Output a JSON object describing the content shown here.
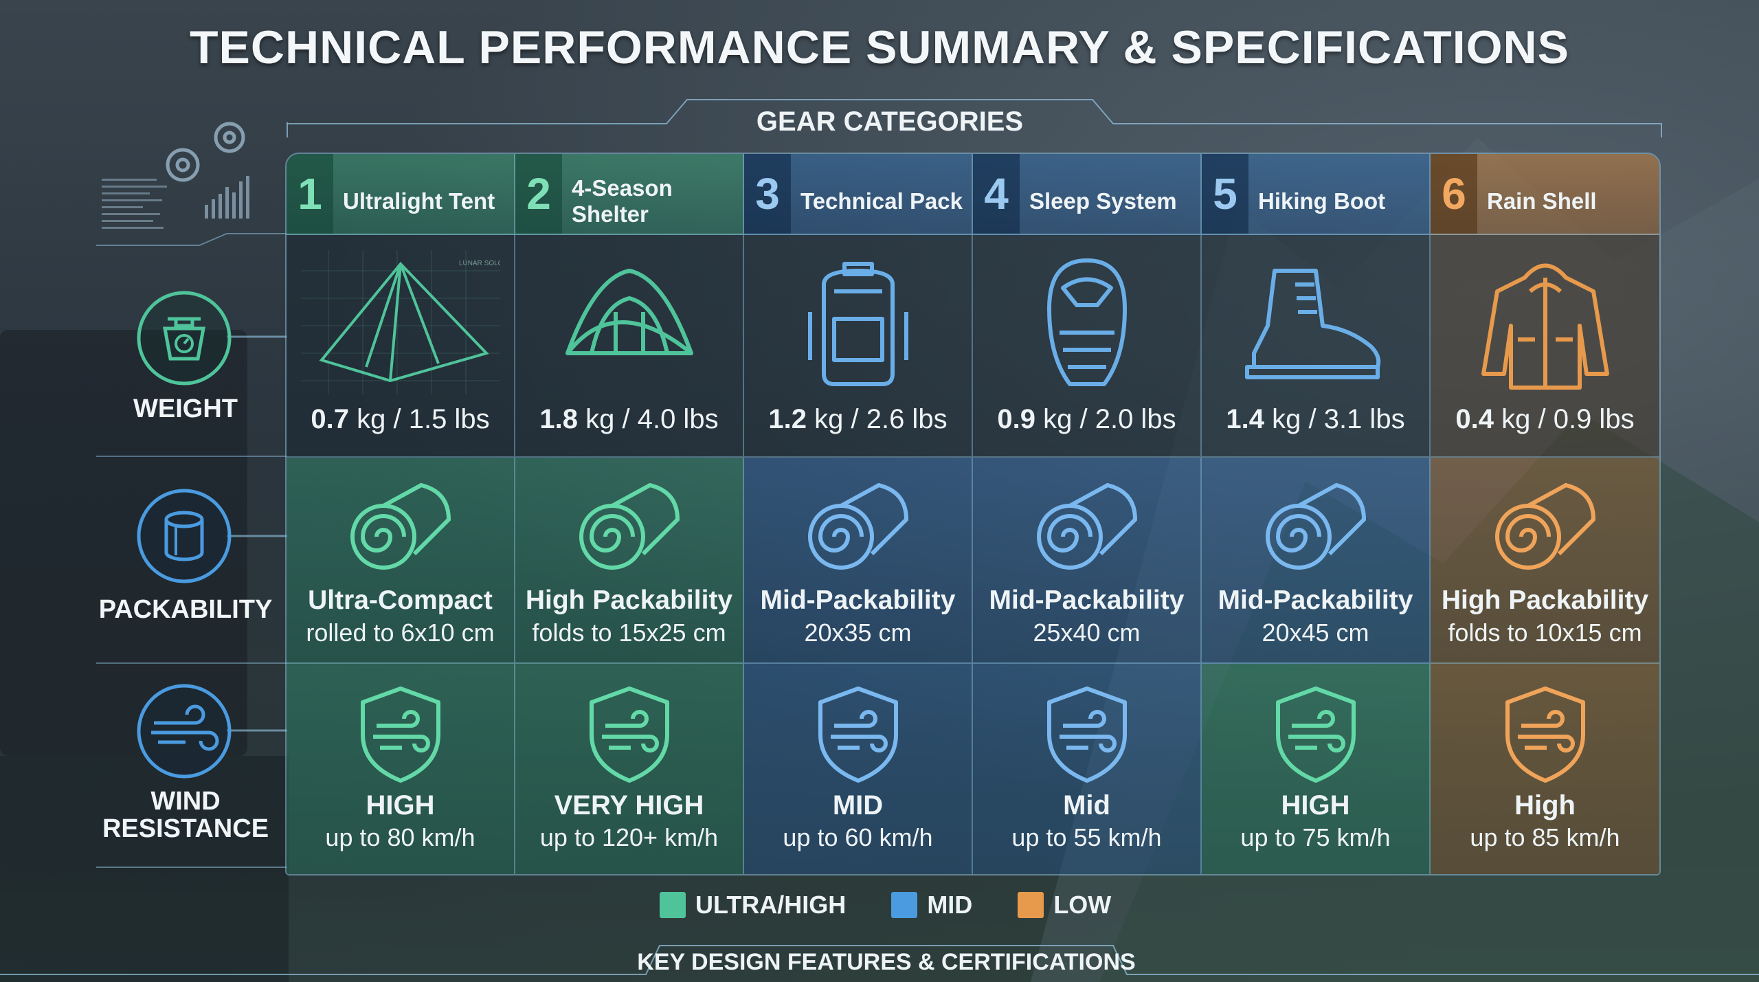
{
  "title": "TECHNICAL PERFORMANCE SUMMARY & SPECIFICATIONS",
  "gear_categories_label": "GEAR CATEGORIES",
  "key_features_label": "KEY DESIGN FEATURES & CERTIFICATIONS",
  "deco_text": "LUNAR SOLO",
  "rows": {
    "weight": "WEIGHT",
    "packability": "PACKABILITY",
    "wind_line1": "WIND",
    "wind_line2": "RESISTANCE"
  },
  "colors": {
    "ultra_high": "#4fc49a",
    "mid": "#4a9be0",
    "low": "#e89a4c"
  },
  "categories": [
    {
      "num": "1",
      "name": "Ultralight Tent",
      "tier": "green",
      "icon": "tent-blueprint-icon",
      "weight_bold": "0.7",
      "weight_rest": " kg / 1.5 lbs",
      "pack_main": "Ultra-Compact",
      "pack_sub": "rolled to 6x10 cm",
      "wind_main": "HIGH",
      "wind_sub": "up to 80 km/h"
    },
    {
      "num": "2",
      "name": "4-Season Shelter",
      "tier": "green",
      "icon": "dome-tent-icon",
      "weight_bold": "1.8",
      "weight_rest": " kg / 4.0 lbs",
      "pack_main": "High Packability",
      "pack_sub": "folds to 15x25 cm",
      "wind_main": "VERY HIGH",
      "wind_sub": "up to 120+ km/h"
    },
    {
      "num": "3",
      "name": "Technical Pack",
      "tier": "blue",
      "icon": "backpack-icon",
      "weight_bold": "1.2",
      "weight_rest": " kg / 2.6 lbs",
      "pack_main": "Mid-Packability",
      "pack_sub": "20x35 cm",
      "wind_main": "MID",
      "wind_sub": "up to 60 km/h"
    },
    {
      "num": "4",
      "name": "Sleep System",
      "tier": "blue",
      "icon": "sleeping-bag-icon",
      "weight_bold": "0.9",
      "weight_rest": " kg / 2.0 lbs",
      "pack_main": "Mid-Packability",
      "pack_sub": "25x40 cm",
      "wind_main": "Mid",
      "wind_sub": "up to 55 km/h"
    },
    {
      "num": "5",
      "name": "Hiking Boot",
      "tier": "blue",
      "icon": "boot-icon",
      "weight_bold": "1.4",
      "weight_rest": " kg / 3.1 lbs",
      "pack_main": "Mid-Packability",
      "pack_sub": "20x45 cm",
      "wind_main": "HIGH",
      "wind_sub": "up to 75 km/h"
    },
    {
      "num": "6",
      "name": "Rain Shell",
      "tier": "orange",
      "icon": "jacket-icon",
      "weight_bold": "0.4",
      "weight_rest": " kg / 0.9 lbs",
      "pack_main": "High Packability",
      "pack_sub": "folds to 10x15 cm",
      "wind_main": "High",
      "wind_sub": "up to 85 km/h"
    }
  ],
  "legend": [
    {
      "label": "ULTRA/HIGH",
      "color": "#4fc49a"
    },
    {
      "label": "MID",
      "color": "#4a9be0"
    },
    {
      "label": "LOW",
      "color": "#e89a4c"
    }
  ]
}
